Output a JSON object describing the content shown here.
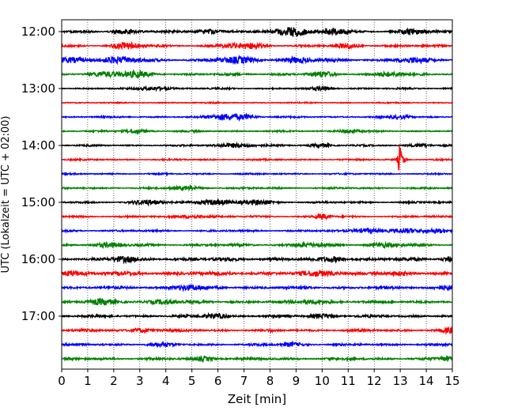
{
  "chart_data": {
    "type": "line",
    "title": "",
    "xlabel": "Zeit  [min]",
    "ylabel": "UTC (Lokalzeit = UTC + 02:00)",
    "xlim": [
      0,
      15
    ],
    "x_ticks": [
      "0",
      "1",
      "2",
      "3",
      "4",
      "5",
      "6",
      "7",
      "8",
      "9",
      "10",
      "11",
      "12",
      "13",
      "14",
      "15"
    ],
    "y_ticks": [
      "12:00",
      "13:00",
      "14:00",
      "15:00",
      "16:00",
      "17:00"
    ],
    "grid": "vertical dotted lines at each minute",
    "colors": [
      "#000000",
      "#ff0000",
      "#0000ff",
      "#008000"
    ],
    "traces": [
      {
        "start": "12:00",
        "color": "#000000",
        "amplitude": 0.9,
        "events": [
          {
            "t": 2.3,
            "a": 1.5,
            "w": 0.3
          },
          {
            "t": 5.5,
            "a": 1.4,
            "w": 0.3
          },
          {
            "t": 8.6,
            "a": 2.0,
            "w": 0.4
          },
          {
            "t": 9.0,
            "a": 2.6,
            "w": 0.3
          },
          {
            "t": 10.5,
            "a": 2.3,
            "w": 0.3
          },
          {
            "t": 13.5,
            "a": 1.4,
            "w": 0.4
          }
        ]
      },
      {
        "start": "12:15",
        "color": "#ff0000",
        "amplitude": 0.8,
        "events": [
          {
            "t": 2.5,
            "a": 2.4,
            "w": 0.35
          },
          {
            "t": 6.5,
            "a": 1.6,
            "w": 0.3
          },
          {
            "t": 7.3,
            "a": 1.8,
            "w": 0.3
          },
          {
            "t": 11.0,
            "a": 1.6,
            "w": 0.3
          }
        ]
      },
      {
        "start": "12:30",
        "color": "#0000ff",
        "amplitude": 1.1,
        "events": [
          {
            "t": 0.5,
            "a": 1.6,
            "w": 0.4
          },
          {
            "t": 2.2,
            "a": 2.0,
            "w": 0.5
          },
          {
            "t": 6.7,
            "a": 1.8,
            "w": 0.5
          },
          {
            "t": 9.0,
            "a": 1.6,
            "w": 0.4
          },
          {
            "t": 13.5,
            "a": 1.5,
            "w": 0.4
          }
        ]
      },
      {
        "start": "12:45",
        "color": "#008000",
        "amplitude": 0.9,
        "events": [
          {
            "t": 1.7,
            "a": 1.6,
            "w": 0.4
          },
          {
            "t": 2.8,
            "a": 1.8,
            "w": 0.4
          },
          {
            "t": 10.0,
            "a": 1.7,
            "w": 0.3
          },
          {
            "t": 12.6,
            "a": 1.5,
            "w": 0.4
          }
        ]
      },
      {
        "start": "13:00",
        "color": "#000000",
        "amplitude": 0.6,
        "events": [
          {
            "t": 3.6,
            "a": 1.3,
            "w": 0.4
          },
          {
            "t": 10.0,
            "a": 1.2,
            "w": 0.3
          }
        ]
      },
      {
        "start": "13:15",
        "color": "#ff0000",
        "amplitude": 0.45,
        "events": []
      },
      {
        "start": "13:30",
        "color": "#0000ff",
        "amplitude": 0.6,
        "events": [
          {
            "t": 6.2,
            "a": 2.4,
            "w": 0.35
          },
          {
            "t": 7.0,
            "a": 1.6,
            "w": 0.3
          },
          {
            "t": 13.0,
            "a": 1.2,
            "w": 0.3
          }
        ]
      },
      {
        "start": "13:45",
        "color": "#008000",
        "amplitude": 0.6,
        "events": [
          {
            "t": 2.8,
            "a": 1.5,
            "w": 0.3
          },
          {
            "t": 11.0,
            "a": 1.3,
            "w": 0.3
          }
        ]
      },
      {
        "start": "14:00",
        "color": "#000000",
        "amplitude": 0.6,
        "events": [
          {
            "t": 6.7,
            "a": 1.6,
            "w": 0.5
          },
          {
            "t": 10.0,
            "a": 1.4,
            "w": 0.3
          },
          {
            "t": 13.8,
            "a": 1.2,
            "w": 0.3
          }
        ]
      },
      {
        "start": "14:15",
        "color": "#ff0000",
        "amplitude": 0.55,
        "events": [
          {
            "t": 12.98,
            "a": 9.0,
            "w": 0.04
          },
          {
            "t": 13.05,
            "a": 3.5,
            "w": 0.12
          }
        ]
      },
      {
        "start": "14:30",
        "color": "#0000ff",
        "amplitude": 0.55,
        "events": []
      },
      {
        "start": "14:45",
        "color": "#008000",
        "amplitude": 0.65,
        "events": [
          {
            "t": 4.8,
            "a": 1.3,
            "w": 0.4
          }
        ]
      },
      {
        "start": "15:00",
        "color": "#000000",
        "amplitude": 0.7,
        "events": [
          {
            "t": 3.3,
            "a": 1.6,
            "w": 0.4
          },
          {
            "t": 5.8,
            "a": 1.8,
            "w": 0.5
          },
          {
            "t": 7.5,
            "a": 1.5,
            "w": 0.4
          }
        ]
      },
      {
        "start": "15:15",
        "color": "#ff0000",
        "amplitude": 0.65,
        "events": [
          {
            "t": 10.0,
            "a": 1.8,
            "w": 0.2
          },
          {
            "t": 5.0,
            "a": 1.2,
            "w": 0.4
          }
        ]
      },
      {
        "start": "15:30",
        "color": "#0000ff",
        "amplitude": 0.7,
        "events": [
          {
            "t": 11.7,
            "a": 1.7,
            "w": 0.35
          },
          {
            "t": 13.2,
            "a": 1.5,
            "w": 0.4
          },
          {
            "t": 14.5,
            "a": 1.4,
            "w": 0.3
          }
        ]
      },
      {
        "start": "15:45",
        "color": "#008000",
        "amplitude": 0.85,
        "events": [
          {
            "t": 1.8,
            "a": 1.4,
            "w": 0.4
          },
          {
            "t": 9.5,
            "a": 1.4,
            "w": 0.4
          },
          {
            "t": 12.4,
            "a": 1.4,
            "w": 0.4
          }
        ]
      },
      {
        "start": "16:00",
        "color": "#000000",
        "amplitude": 1.2,
        "events": [
          {
            "t": 2.3,
            "a": 1.6,
            "w": 0.3
          },
          {
            "t": 10.5,
            "a": 1.5,
            "w": 0.3
          },
          {
            "t": 14.9,
            "a": 1.6,
            "w": 0.2
          }
        ]
      },
      {
        "start": "16:15",
        "color": "#ff0000",
        "amplitude": 1.4,
        "events": [
          {
            "t": 0.3,
            "a": 1.5,
            "w": 0.3
          },
          {
            "t": 10.0,
            "a": 1.5,
            "w": 0.4
          }
        ]
      },
      {
        "start": "16:30",
        "color": "#0000ff",
        "amplitude": 1.0,
        "events": [
          {
            "t": 4.8,
            "a": 1.8,
            "w": 0.4
          },
          {
            "t": 14.8,
            "a": 1.5,
            "w": 0.3
          }
        ]
      },
      {
        "start": "16:45",
        "color": "#008000",
        "amplitude": 1.0,
        "events": [
          {
            "t": 1.5,
            "a": 1.6,
            "w": 0.4
          },
          {
            "t": 4.0,
            "a": 1.5,
            "w": 0.4
          },
          {
            "t": 9.7,
            "a": 1.4,
            "w": 0.4
          }
        ]
      },
      {
        "start": "17:00",
        "color": "#000000",
        "amplitude": 0.9,
        "events": [
          {
            "t": 5.9,
            "a": 1.8,
            "w": 0.3
          },
          {
            "t": 10.0,
            "a": 1.4,
            "w": 0.3
          }
        ]
      },
      {
        "start": "17:15",
        "color": "#ff0000",
        "amplitude": 0.9,
        "events": [
          {
            "t": 3.1,
            "a": 1.4,
            "w": 0.3
          },
          {
            "t": 14.9,
            "a": 1.4,
            "w": 0.2
          }
        ]
      },
      {
        "start": "17:30",
        "color": "#0000ff",
        "amplitude": 0.8,
        "events": [
          {
            "t": 3.8,
            "a": 1.4,
            "w": 0.3
          },
          {
            "t": 8.8,
            "a": 1.3,
            "w": 0.3
          }
        ]
      },
      {
        "start": "17:45",
        "color": "#008000",
        "amplitude": 0.9,
        "events": [
          {
            "t": 5.5,
            "a": 1.3,
            "w": 0.3
          },
          {
            "t": 14.8,
            "a": 1.5,
            "w": 0.2
          }
        ]
      }
    ]
  }
}
